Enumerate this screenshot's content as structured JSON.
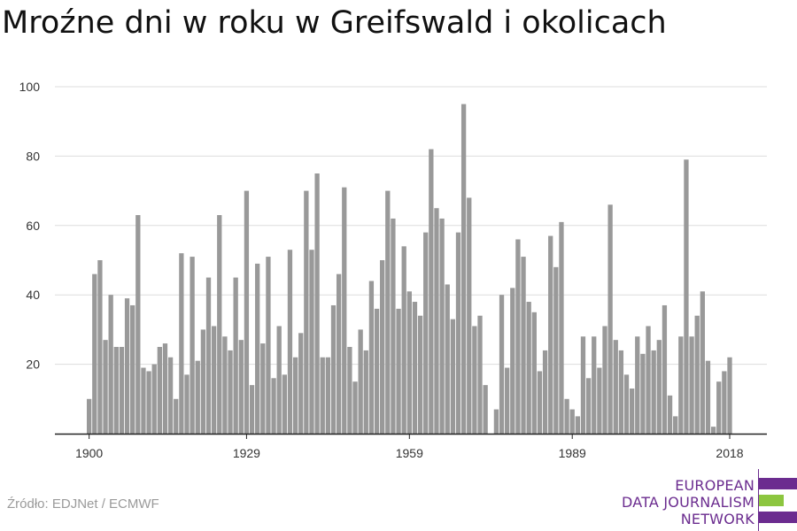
{
  "title": "Mroźne dni w roku w Greifswald i okolicach",
  "source": "Źródło: EDJNet / ECMWF",
  "logo": {
    "line1": "EUROPEAN",
    "line2": "DATA JOURNALISM",
    "line3": "NETWORK",
    "color_primary": "#6b2c8f",
    "color_accent": "#8cc63f"
  },
  "colors": {
    "bar": "#999999",
    "grid": "#dddddd",
    "axis": "#222222"
  },
  "chart_data": {
    "type": "bar",
    "title": "Mroźne dni w roku w Greifswald i okolicach",
    "xlabel": "",
    "ylabel": "",
    "ylim": [
      0,
      100
    ],
    "yticks": [
      20,
      40,
      60,
      80,
      100
    ],
    "xticks": [
      1900,
      1929,
      1959,
      1989,
      2018
    ],
    "grid": true,
    "x": [
      1900,
      1901,
      1902,
      1903,
      1904,
      1905,
      1906,
      1907,
      1908,
      1909,
      1910,
      1911,
      1912,
      1913,
      1914,
      1915,
      1916,
      1917,
      1918,
      1919,
      1920,
      1921,
      1922,
      1923,
      1924,
      1925,
      1926,
      1927,
      1928,
      1929,
      1930,
      1931,
      1932,
      1933,
      1934,
      1935,
      1936,
      1937,
      1938,
      1939,
      1940,
      1941,
      1942,
      1943,
      1944,
      1945,
      1946,
      1947,
      1948,
      1949,
      1950,
      1951,
      1952,
      1953,
      1954,
      1955,
      1956,
      1957,
      1958,
      1959,
      1960,
      1961,
      1962,
      1963,
      1964,
      1965,
      1966,
      1967,
      1968,
      1969,
      1970,
      1971,
      1972,
      1973,
      1974,
      1975,
      1976,
      1977,
      1978,
      1979,
      1980,
      1981,
      1982,
      1983,
      1984,
      1985,
      1986,
      1987,
      1988,
      1989,
      1990,
      1991,
      1992,
      1993,
      1994,
      1995,
      1996,
      1997,
      1998,
      1999,
      2000,
      2001,
      2002,
      2003,
      2004,
      2005,
      2006,
      2007,
      2008,
      2009,
      2010,
      2011,
      2012,
      2013,
      2014,
      2015,
      2016,
      2017,
      2018
    ],
    "values": [
      10,
      46,
      50,
      27,
      40,
      25,
      25,
      39,
      37,
      63,
      19,
      18,
      20,
      25,
      26,
      22,
      10,
      52,
      17,
      51,
      21,
      30,
      45,
      31,
      63,
      28,
      24,
      45,
      27,
      70,
      14,
      49,
      26,
      51,
      16,
      31,
      17,
      53,
      22,
      29,
      70,
      53,
      75,
      22,
      22,
      37,
      46,
      71,
      25,
      15,
      30,
      24,
      44,
      36,
      50,
      70,
      62,
      36,
      54,
      41,
      38,
      34,
      58,
      82,
      65,
      62,
      43,
      33,
      58,
      95,
      68,
      31,
      34,
      14,
      0,
      7,
      40,
      19,
      42,
      56,
      51,
      38,
      35,
      18,
      24,
      57,
      48,
      61,
      10,
      7,
      5,
      28,
      16,
      28,
      19,
      31,
      66,
      27,
      24,
      17,
      13,
      28,
      23,
      31,
      24,
      27,
      37,
      11,
      5,
      28,
      79,
      28,
      34,
      41,
      21,
      2,
      15,
      18,
      22
    ]
  }
}
